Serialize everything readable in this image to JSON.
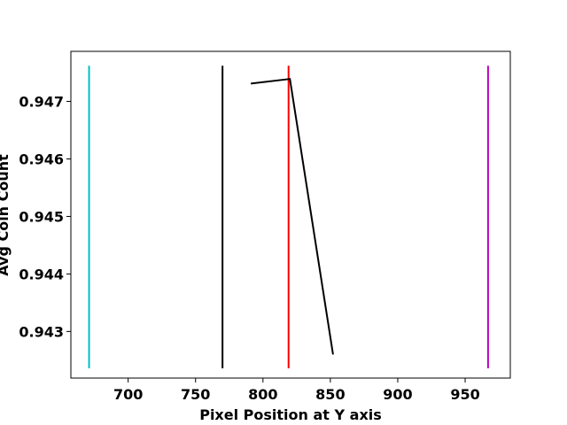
{
  "chart_data": {
    "type": "line",
    "title": "",
    "xlabel": "Pixel Position at Y axis",
    "ylabel": "Avg Coin Count",
    "xlim": [
      657.5,
      983.5
    ],
    "ylim": [
      0.94219,
      0.94787
    ],
    "x_ticks": [
      700,
      750,
      800,
      850,
      900,
      950
    ],
    "x_tick_labels": [
      "700",
      "750",
      "800",
      "850",
      "900",
      "950"
    ],
    "y_ticks": [
      0.943,
      0.944,
      0.945,
      0.946,
      0.947
    ],
    "y_tick_labels": [
      "0.943",
      "0.944",
      "0.945",
      "0.946",
      "0.947"
    ],
    "grid": false,
    "series": [
      {
        "color": "#000000",
        "points": [
          {
            "x": 791,
            "y": 0.94731
          },
          {
            "x": 820,
            "y": 0.94739
          },
          {
            "x": 852,
            "y": 0.9426
          }
        ]
      }
    ],
    "vlines": [
      {
        "x": 671,
        "color": "#00bfbf",
        "ymin": 0.94236,
        "ymax": 0.94762
      },
      {
        "x": 770,
        "color": "#000000",
        "ymin": 0.94236,
        "ymax": 0.94762
      },
      {
        "x": 819,
        "color": "#ff0000",
        "ymin": 0.94236,
        "ymax": 0.94762
      },
      {
        "x": 967,
        "color": "#bf00bf",
        "ymin": 0.94236,
        "ymax": 0.94762
      }
    ]
  }
}
